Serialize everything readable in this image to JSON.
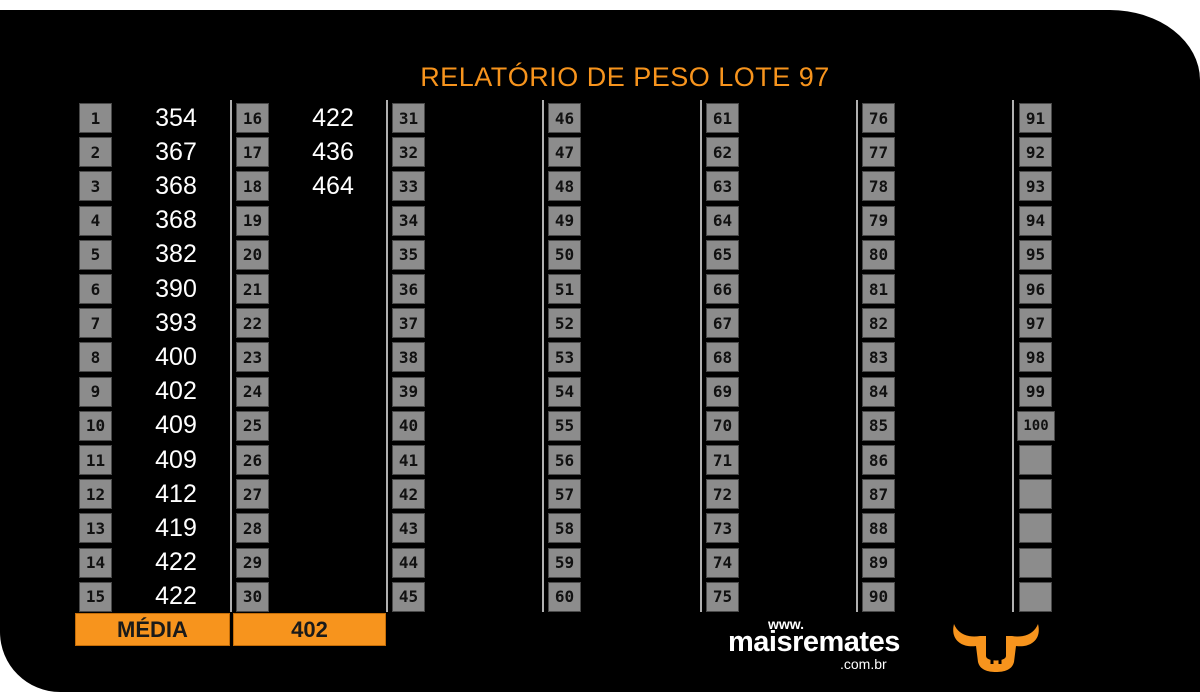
{
  "title": "RELATÓRIO DE PESO LOTE  97",
  "weights": [
    354,
    367,
    368,
    368,
    382,
    390,
    393,
    400,
    402,
    409,
    409,
    412,
    419,
    422,
    422,
    422,
    436,
    464
  ],
  "summary": {
    "label": "MÉDIA",
    "value": "402"
  },
  "brand": {
    "www": "www.",
    "name": "maisremates",
    "tld": ".com.br"
  },
  "colors": {
    "accent": "#f7941d",
    "cell": "#8c8c8c",
    "background": "#000000"
  },
  "icons": {
    "logo": "bull-head-icon"
  }
}
